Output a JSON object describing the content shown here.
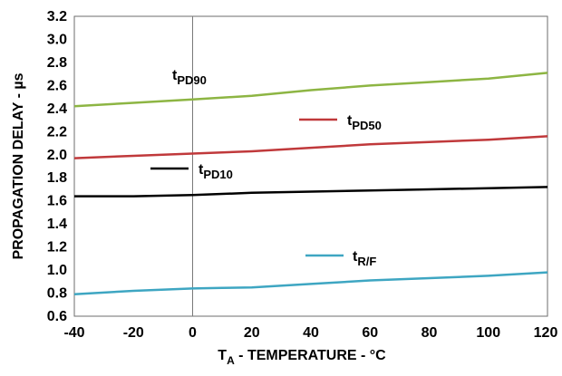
{
  "chart_data": {
    "type": "line",
    "xlabel": {
      "prefix": "T",
      "sub": "A",
      "suffix": " - TEMPERATURE - °C"
    },
    "ylabel": "PROPAGATION DELAY - µs",
    "xlim": [
      -40,
      120
    ],
    "ylim": [
      0.6,
      3.2
    ],
    "xticks": [
      -40,
      -20,
      0,
      20,
      40,
      60,
      80,
      100,
      120
    ],
    "yticks": [
      0.6,
      0.8,
      1.0,
      1.2,
      1.4,
      1.6,
      1.8,
      2.0,
      2.2,
      2.4,
      2.6,
      2.8,
      3.0,
      3.2
    ],
    "ytick_labels": [
      "0.6",
      "0.8",
      "1.0",
      "1.2",
      "1.4",
      "1.6",
      "1.8",
      "2.0",
      "2.2",
      "2.4",
      "2.6",
      "2.8",
      "3.0",
      "3.2"
    ],
    "vertical_reference_line_x": 0,
    "grid": false,
    "series": [
      {
        "name": "tPD90",
        "label_main": "t",
        "label_sub": "PD90",
        "color": "#8db543",
        "x": [
          -40,
          -20,
          0,
          20,
          40,
          60,
          80,
          100,
          120
        ],
        "y": [
          2.42,
          2.45,
          2.48,
          2.51,
          2.56,
          2.6,
          2.63,
          2.66,
          2.71
        ],
        "legend_line": false
      },
      {
        "name": "tPD50",
        "label_main": "t",
        "label_sub": "PD50",
        "color": "#c0393b",
        "x": [
          -40,
          -20,
          0,
          20,
          40,
          60,
          80,
          100,
          120
        ],
        "y": [
          1.97,
          1.99,
          2.01,
          2.03,
          2.06,
          2.09,
          2.11,
          2.13,
          2.16
        ],
        "legend_line": true
      },
      {
        "name": "tPD10",
        "label_main": "t",
        "label_sub": "PD10",
        "color": "#000000",
        "x": [
          -40,
          -20,
          0,
          20,
          40,
          60,
          80,
          100,
          120
        ],
        "y": [
          1.64,
          1.64,
          1.65,
          1.67,
          1.68,
          1.69,
          1.7,
          1.71,
          1.72
        ],
        "legend_line": true
      },
      {
        "name": "tR/F",
        "label_main": "t",
        "label_sub": "R/F",
        "color": "#3ea6c2",
        "x": [
          -40,
          -20,
          0,
          10,
          20,
          40,
          60,
          80,
          100,
          120
        ],
        "y": [
          0.79,
          0.82,
          0.84,
          0.845,
          0.85,
          0.88,
          0.91,
          0.93,
          0.95,
          0.98
        ],
        "legend_line": true
      }
    ]
  }
}
